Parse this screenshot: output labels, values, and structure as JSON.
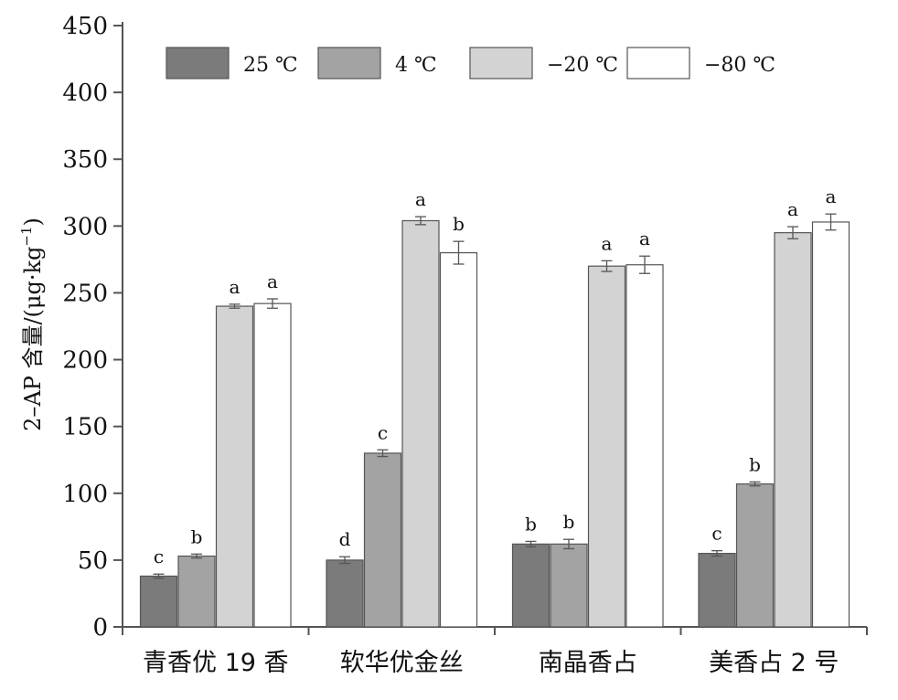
{
  "chart_data": {
    "type": "bar",
    "ylabel": "2–AP 含量/(μg·kg",
    "ylabel_sup": "−1",
    "ylabel_close": ")",
    "ylim": [
      0,
      450
    ],
    "yticks": [
      "0",
      "50",
      "100",
      "150",
      "200",
      "250",
      "300",
      "350",
      "400",
      "450"
    ],
    "categories": [
      "青香优 19 香",
      "软华优金丝",
      "南晶香占",
      "美香占 2 号"
    ],
    "legend_position": "top",
    "series": [
      {
        "name": "25 ℃",
        "color": "#7b7b7b",
        "values": [
          38,
          50,
          62,
          55
        ],
        "errors": [
          1.5,
          2.5,
          2,
          2
        ],
        "labels": [
          "c",
          "d",
          "b",
          "c"
        ]
      },
      {
        "name": "4 ℃",
        "color": "#a3a3a3",
        "values": [
          53,
          130,
          62,
          107
        ],
        "errors": [
          1.5,
          2.5,
          3.5,
          1.5
        ],
        "labels": [
          "b",
          "c",
          "b",
          "b"
        ]
      },
      {
        "name": "−20 ℃",
        "color": "#d3d3d3",
        "values": [
          240,
          304,
          270,
          295
        ],
        "errors": [
          1.5,
          3,
          4,
          4.5
        ],
        "labels": [
          "a",
          "a",
          "a",
          "a"
        ]
      },
      {
        "name": "−80 ℃",
        "color": "#ffffff",
        "values": [
          242,
          280,
          271,
          303
        ],
        "errors": [
          3.5,
          8.5,
          6.5,
          6
        ],
        "labels": [
          "a",
          "b",
          "a",
          "a"
        ]
      }
    ]
  }
}
